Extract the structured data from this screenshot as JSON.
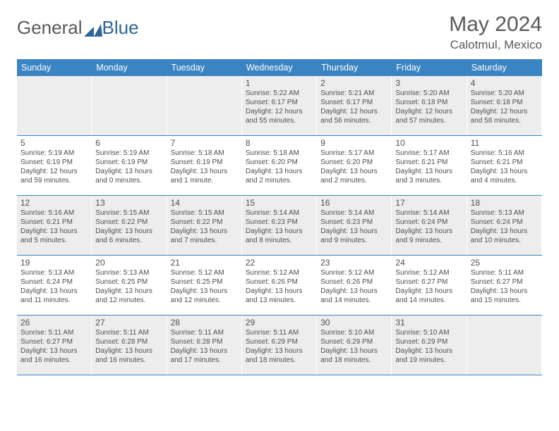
{
  "logo": {
    "text1": "General",
    "text2": "Blue",
    "color1": "#6a6a6a",
    "color2": "#2f6597",
    "mark_color": "#2f6597"
  },
  "header": {
    "month": "May 2024",
    "location": "Calotmul, Mexico"
  },
  "styling": {
    "dow_bg": "#3b84c4",
    "dow_fg": "#ffffff",
    "cell_alt_bg": "#ededed",
    "rule_color": "#3b84c4",
    "text_color": "#4f4f4f",
    "day_fontsize": 12,
    "body_fontsize": 10
  },
  "dow": [
    "Sunday",
    "Monday",
    "Tuesday",
    "Wednesday",
    "Thursday",
    "Friday",
    "Saturday"
  ],
  "weeks": [
    [
      {},
      {},
      {},
      {
        "n": "1",
        "sr": "5:22 AM",
        "ss": "6:17 PM",
        "dl": "12 hours and 55 minutes."
      },
      {
        "n": "2",
        "sr": "5:21 AM",
        "ss": "6:17 PM",
        "dl": "12 hours and 56 minutes."
      },
      {
        "n": "3",
        "sr": "5:20 AM",
        "ss": "6:18 PM",
        "dl": "12 hours and 57 minutes."
      },
      {
        "n": "4",
        "sr": "5:20 AM",
        "ss": "6:18 PM",
        "dl": "12 hours and 58 minutes."
      }
    ],
    [
      {
        "n": "5",
        "sr": "5:19 AM",
        "ss": "6:19 PM",
        "dl": "12 hours and 59 minutes."
      },
      {
        "n": "6",
        "sr": "5:19 AM",
        "ss": "6:19 PM",
        "dl": "13 hours and 0 minutes."
      },
      {
        "n": "7",
        "sr": "5:18 AM",
        "ss": "6:19 PM",
        "dl": "13 hours and 1 minute."
      },
      {
        "n": "8",
        "sr": "5:18 AM",
        "ss": "6:20 PM",
        "dl": "13 hours and 2 minutes."
      },
      {
        "n": "9",
        "sr": "5:17 AM",
        "ss": "6:20 PM",
        "dl": "13 hours and 2 minutes."
      },
      {
        "n": "10",
        "sr": "5:17 AM",
        "ss": "6:21 PM",
        "dl": "13 hours and 3 minutes."
      },
      {
        "n": "11",
        "sr": "5:16 AM",
        "ss": "6:21 PM",
        "dl": "13 hours and 4 minutes."
      }
    ],
    [
      {
        "n": "12",
        "sr": "5:16 AM",
        "ss": "6:21 PM",
        "dl": "13 hours and 5 minutes."
      },
      {
        "n": "13",
        "sr": "5:15 AM",
        "ss": "6:22 PM",
        "dl": "13 hours and 6 minutes."
      },
      {
        "n": "14",
        "sr": "5:15 AM",
        "ss": "6:22 PM",
        "dl": "13 hours and 7 minutes."
      },
      {
        "n": "15",
        "sr": "5:14 AM",
        "ss": "6:23 PM",
        "dl": "13 hours and 8 minutes."
      },
      {
        "n": "16",
        "sr": "5:14 AM",
        "ss": "6:23 PM",
        "dl": "13 hours and 9 minutes."
      },
      {
        "n": "17",
        "sr": "5:14 AM",
        "ss": "6:24 PM",
        "dl": "13 hours and 9 minutes."
      },
      {
        "n": "18",
        "sr": "5:13 AM",
        "ss": "6:24 PM",
        "dl": "13 hours and 10 minutes."
      }
    ],
    [
      {
        "n": "19",
        "sr": "5:13 AM",
        "ss": "6:24 PM",
        "dl": "13 hours and 11 minutes."
      },
      {
        "n": "20",
        "sr": "5:13 AM",
        "ss": "6:25 PM",
        "dl": "13 hours and 12 minutes."
      },
      {
        "n": "21",
        "sr": "5:12 AM",
        "ss": "6:25 PM",
        "dl": "13 hours and 12 minutes."
      },
      {
        "n": "22",
        "sr": "5:12 AM",
        "ss": "6:26 PM",
        "dl": "13 hours and 13 minutes."
      },
      {
        "n": "23",
        "sr": "5:12 AM",
        "ss": "6:26 PM",
        "dl": "13 hours and 14 minutes."
      },
      {
        "n": "24",
        "sr": "5:12 AM",
        "ss": "6:27 PM",
        "dl": "13 hours and 14 minutes."
      },
      {
        "n": "25",
        "sr": "5:11 AM",
        "ss": "6:27 PM",
        "dl": "13 hours and 15 minutes."
      }
    ],
    [
      {
        "n": "26",
        "sr": "5:11 AM",
        "ss": "6:27 PM",
        "dl": "13 hours and 16 minutes."
      },
      {
        "n": "27",
        "sr": "5:11 AM",
        "ss": "6:28 PM",
        "dl": "13 hours and 16 minutes."
      },
      {
        "n": "28",
        "sr": "5:11 AM",
        "ss": "6:28 PM",
        "dl": "13 hours and 17 minutes."
      },
      {
        "n": "29",
        "sr": "5:11 AM",
        "ss": "6:29 PM",
        "dl": "13 hours and 18 minutes."
      },
      {
        "n": "30",
        "sr": "5:10 AM",
        "ss": "6:29 PM",
        "dl": "13 hours and 18 minutes."
      },
      {
        "n": "31",
        "sr": "5:10 AM",
        "ss": "6:29 PM",
        "dl": "13 hours and 19 minutes."
      },
      {}
    ]
  ],
  "labels": {
    "sunrise": "Sunrise:",
    "sunset": "Sunset:",
    "daylight": "Daylight:"
  }
}
